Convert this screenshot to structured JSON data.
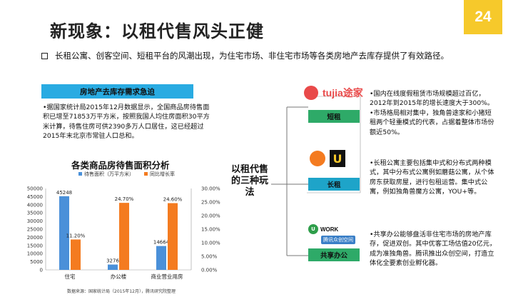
{
  "title": "新现象：以租代售风头正健",
  "page_number": "24",
  "bullet": "长租公寓、创客空间、短租平台的风潮出现，为住宅市场、非住宅市场等各类房地产去库存提供了有效路径。",
  "left_panel": {
    "banner": "房地产去库存需求急迫",
    "text": "•据国家统计局2015年12月数据显示，全国商品房待售面积已增至71853万平方米，按照我国人均住房面积30平方米计算，待售住房可供2390多万人口居住，这已经超过2015年末北京市常驻人口总和。"
  },
  "chart_data": {
    "type": "bar",
    "title": "各类商品房待售面积分析",
    "categories": [
      "住宅",
      "办公楼",
      "商业营业用房"
    ],
    "series": [
      {
        "name": "待售面积（万平方米）",
        "values": [
          45248,
          3276,
          14664
        ],
        "color": "#4a90d9",
        "axis": "left"
      },
      {
        "name": "同比增长率",
        "values": [
          11.2,
          24.7,
          24.6
        ],
        "color": "#f47b20",
        "axis": "right"
      }
    ],
    "value_labels": [
      "45248",
      "3276",
      "14664"
    ],
    "rate_labels": [
      "11.20%",
      "24.70%",
      "24.60%"
    ],
    "ylim_left": [
      0,
      50000
    ],
    "ylim_right": [
      0,
      30
    ],
    "left_ticks": [
      "50000",
      "45000",
      "40000",
      "35000",
      "30000",
      "25000",
      "20000",
      "15000",
      "10000",
      "5000",
      "0"
    ],
    "right_ticks": [
      "30.00%",
      "25.00%",
      "20.00%",
      "15.00%",
      "10.00%",
      "5.00%",
      "0.00%"
    ],
    "source": "数据来源：国家统计局（2015年12月），腾讯研究院整理"
  },
  "center": {
    "label": "以租代售的三种玩法"
  },
  "modes": [
    {
      "logo_text": "tujia途家",
      "label": "短租",
      "text": "•国内在线度假租赁市场规模超过百亿，2012年到2015年的增长速度大于300%。•市场格局相对集中，独角兽途家和小猪短租两个轻重模式的代表，占据着整体市场份额近50%。"
    },
    {
      "logo_text": "U",
      "label": "长租",
      "text": "•长租公寓主要包括集中式和分布式两种模式，其中分布式公寓例如蘑菇公寓，从个体房东获取房屋，进行包租运营。集中式公寓，例如独角兽魔方公寓，YOU+等。"
    },
    {
      "logo_text": "WORK",
      "logo_sub": "腾讯众创空间",
      "label": "共享办公",
      "text": "•共享办公能够盘活非住宅市场的房地产库存，促进双创。其中优客工场估值20亿元，成为准独角兽。腾讯推出众创空间，打造立体化全要素创业孵化器。"
    }
  ],
  "colors": {
    "accent_yellow": "#f6c92b",
    "blue": "#29abe2",
    "green": "#2eaa68",
    "orange": "#f47b20"
  }
}
